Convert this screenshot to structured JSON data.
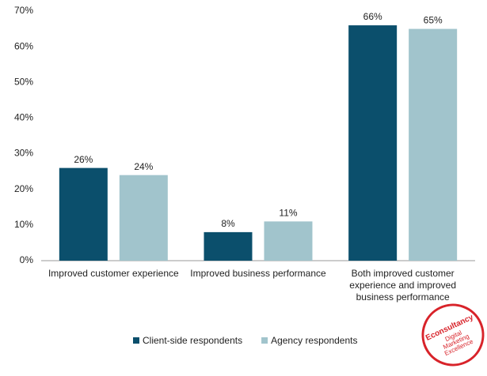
{
  "chart_data": {
    "type": "bar",
    "categories": [
      "Improved customer experience",
      "Improved business performance",
      "Both improved customer experience and improved business performance"
    ],
    "series": [
      {
        "name": "Client-side respondents",
        "color": "#0b4f6c",
        "values": [
          26,
          8,
          66
        ],
        "value_labels": [
          "26%",
          "8%",
          "66%"
        ]
      },
      {
        "name": "Agency respondents",
        "color": "#a1c4cc",
        "values": [
          24,
          11,
          65
        ],
        "value_labels": [
          "24%",
          "11%",
          "65%"
        ]
      }
    ],
    "ylim": [
      0,
      70
    ],
    "yticks": [
      {
        "value": 0,
        "label": "0%"
      },
      {
        "value": 10,
        "label": "10%"
      },
      {
        "value": 20,
        "label": "20%"
      },
      {
        "value": 30,
        "label": "30%"
      },
      {
        "value": 40,
        "label": "40%"
      },
      {
        "value": 50,
        "label": "50%"
      },
      {
        "value": 60,
        "label": "60%"
      },
      {
        "value": 70,
        "label": "70%"
      }
    ],
    "grid": false,
    "legend": "bottom"
  },
  "logo": {
    "brand": "Econsultancy",
    "tagline": "Digital Marketing Excellence"
  }
}
